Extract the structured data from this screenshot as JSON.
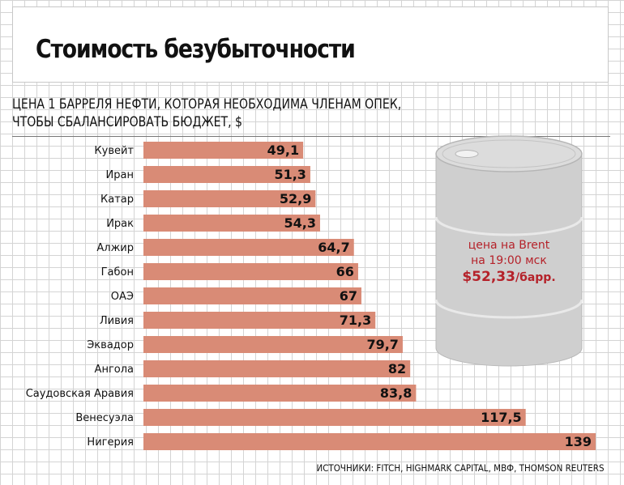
{
  "header": {
    "title": "Стоимость безубыточности",
    "subtitle_line1": "ЦЕНА 1 БАРРЕЛЯ НЕФТИ, КОТОРАЯ НЕОБХОДИМА ЧЛЕНАМ ОПЕК,",
    "subtitle_line2": "ЧТОБЫ СБАЛАНСИРОВАТЬ БЮДЖЕТ, $"
  },
  "chart_data": {
    "type": "bar",
    "orientation": "horizontal",
    "title": "Стоимость безубыточности",
    "subtitle": "ЦЕНА 1 БАРРЕЛЯ НЕФТИ, КОТОРАЯ НЕОБХОДИМА ЧЛЕНАМ ОПЕК, ЧТОБЫ СБАЛАНСИРОВАТЬ БЮДЖЕТ, $",
    "categories": [
      "Кувейт",
      "Иран",
      "Катар",
      "Ирак",
      "Алжир",
      "Габон",
      "ОАЭ",
      "Ливия",
      "Эквадор",
      "Ангола",
      "Саудовская Аравия",
      "Венесуэла",
      "Нигерия"
    ],
    "values": [
      49.1,
      51.3,
      52.9,
      54.3,
      64.7,
      66,
      67,
      71.3,
      79.7,
      82,
      83.8,
      117.5,
      139
    ],
    "value_labels": [
      "49,1",
      "51,3",
      "52,9",
      "54,3",
      "64,7",
      "66",
      "67",
      "71,3",
      "79,7",
      "82",
      "83,8",
      "117,5",
      "139"
    ],
    "xlim": [
      0,
      139
    ],
    "bar_color": "#d98b76",
    "grid": true
  },
  "barrel": {
    "line1": "цена на Brent",
    "line2": "на 19:00 мск",
    "price": "$52,33",
    "unit": "/барр.",
    "text_color": "#b5222a",
    "body_color": "#cfcfcf"
  },
  "source": "ИСТОЧНИКИ: FITCH, HIGHMARK CAPITAL, МВФ, THOMSON REUTERS"
}
